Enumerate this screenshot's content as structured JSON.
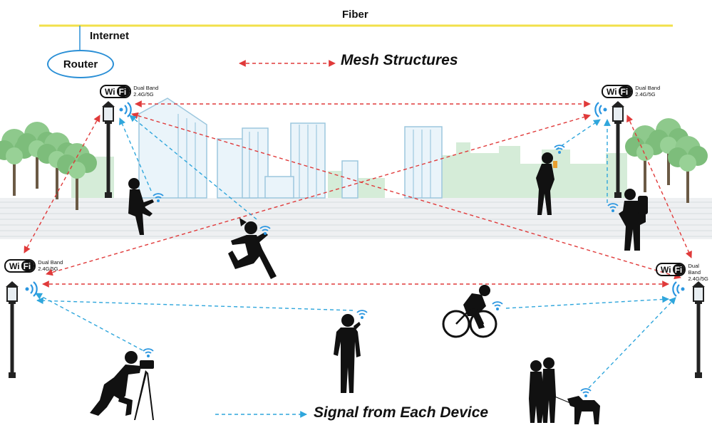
{
  "labels": {
    "fiber": "Fiber",
    "internet": "Internet",
    "router": "Router",
    "mesh_legend": "Mesh Structures",
    "signal_legend": "Signal from Each Device"
  },
  "wifi_badge": {
    "logo_left": "Wi",
    "logo_right": "Fi",
    "line1": "Dual Band",
    "line2": "2.4G/5G"
  },
  "colors": {
    "fiber_line": "#f2e04a",
    "mesh_arrow": "#e03a3a",
    "signal_arrow": "#2fa6dc",
    "router_outline": "#2a8fd6",
    "wifi_waves": "#2a96e0"
  },
  "nodes": [
    "top-left-lamp",
    "top-right-lamp",
    "bottom-left-lamp",
    "bottom-right-lamp"
  ],
  "devices": [
    "sitting-woman",
    "runner",
    "woman-on-phone",
    "hiker-with-tablet",
    "photographer",
    "man-on-phone",
    "cyclist",
    "couple-with-dog"
  ]
}
